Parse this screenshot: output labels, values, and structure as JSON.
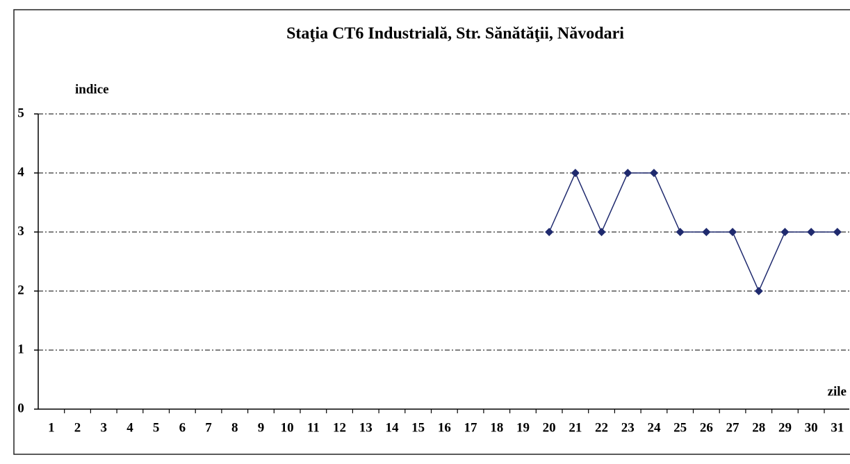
{
  "chart_data": {
    "type": "line",
    "title": "Staţia CT6 Industrială,  Str. Sănătăţii, Năvodari",
    "y_label": "indice",
    "x_label": "zile",
    "categories": [
      "1",
      "2",
      "3",
      "4",
      "5",
      "6",
      "7",
      "8",
      "9",
      "10",
      "11",
      "12",
      "13",
      "14",
      "15",
      "16",
      "17",
      "18",
      "19",
      "20",
      "21",
      "22",
      "23",
      "24",
      "25",
      "26",
      "27",
      "28",
      "29",
      "30",
      "31"
    ],
    "values": [
      null,
      null,
      null,
      null,
      null,
      null,
      null,
      null,
      null,
      null,
      null,
      null,
      null,
      null,
      null,
      null,
      null,
      null,
      null,
      3,
      4,
      3,
      4,
      4,
      3,
      3,
      3,
      2,
      3,
      3,
      3
    ],
    "color": "#1f2a6e",
    "ylim": [
      0,
      5
    ],
    "yticks": [
      0,
      1,
      2,
      3,
      4,
      5
    ],
    "grid": true
  }
}
